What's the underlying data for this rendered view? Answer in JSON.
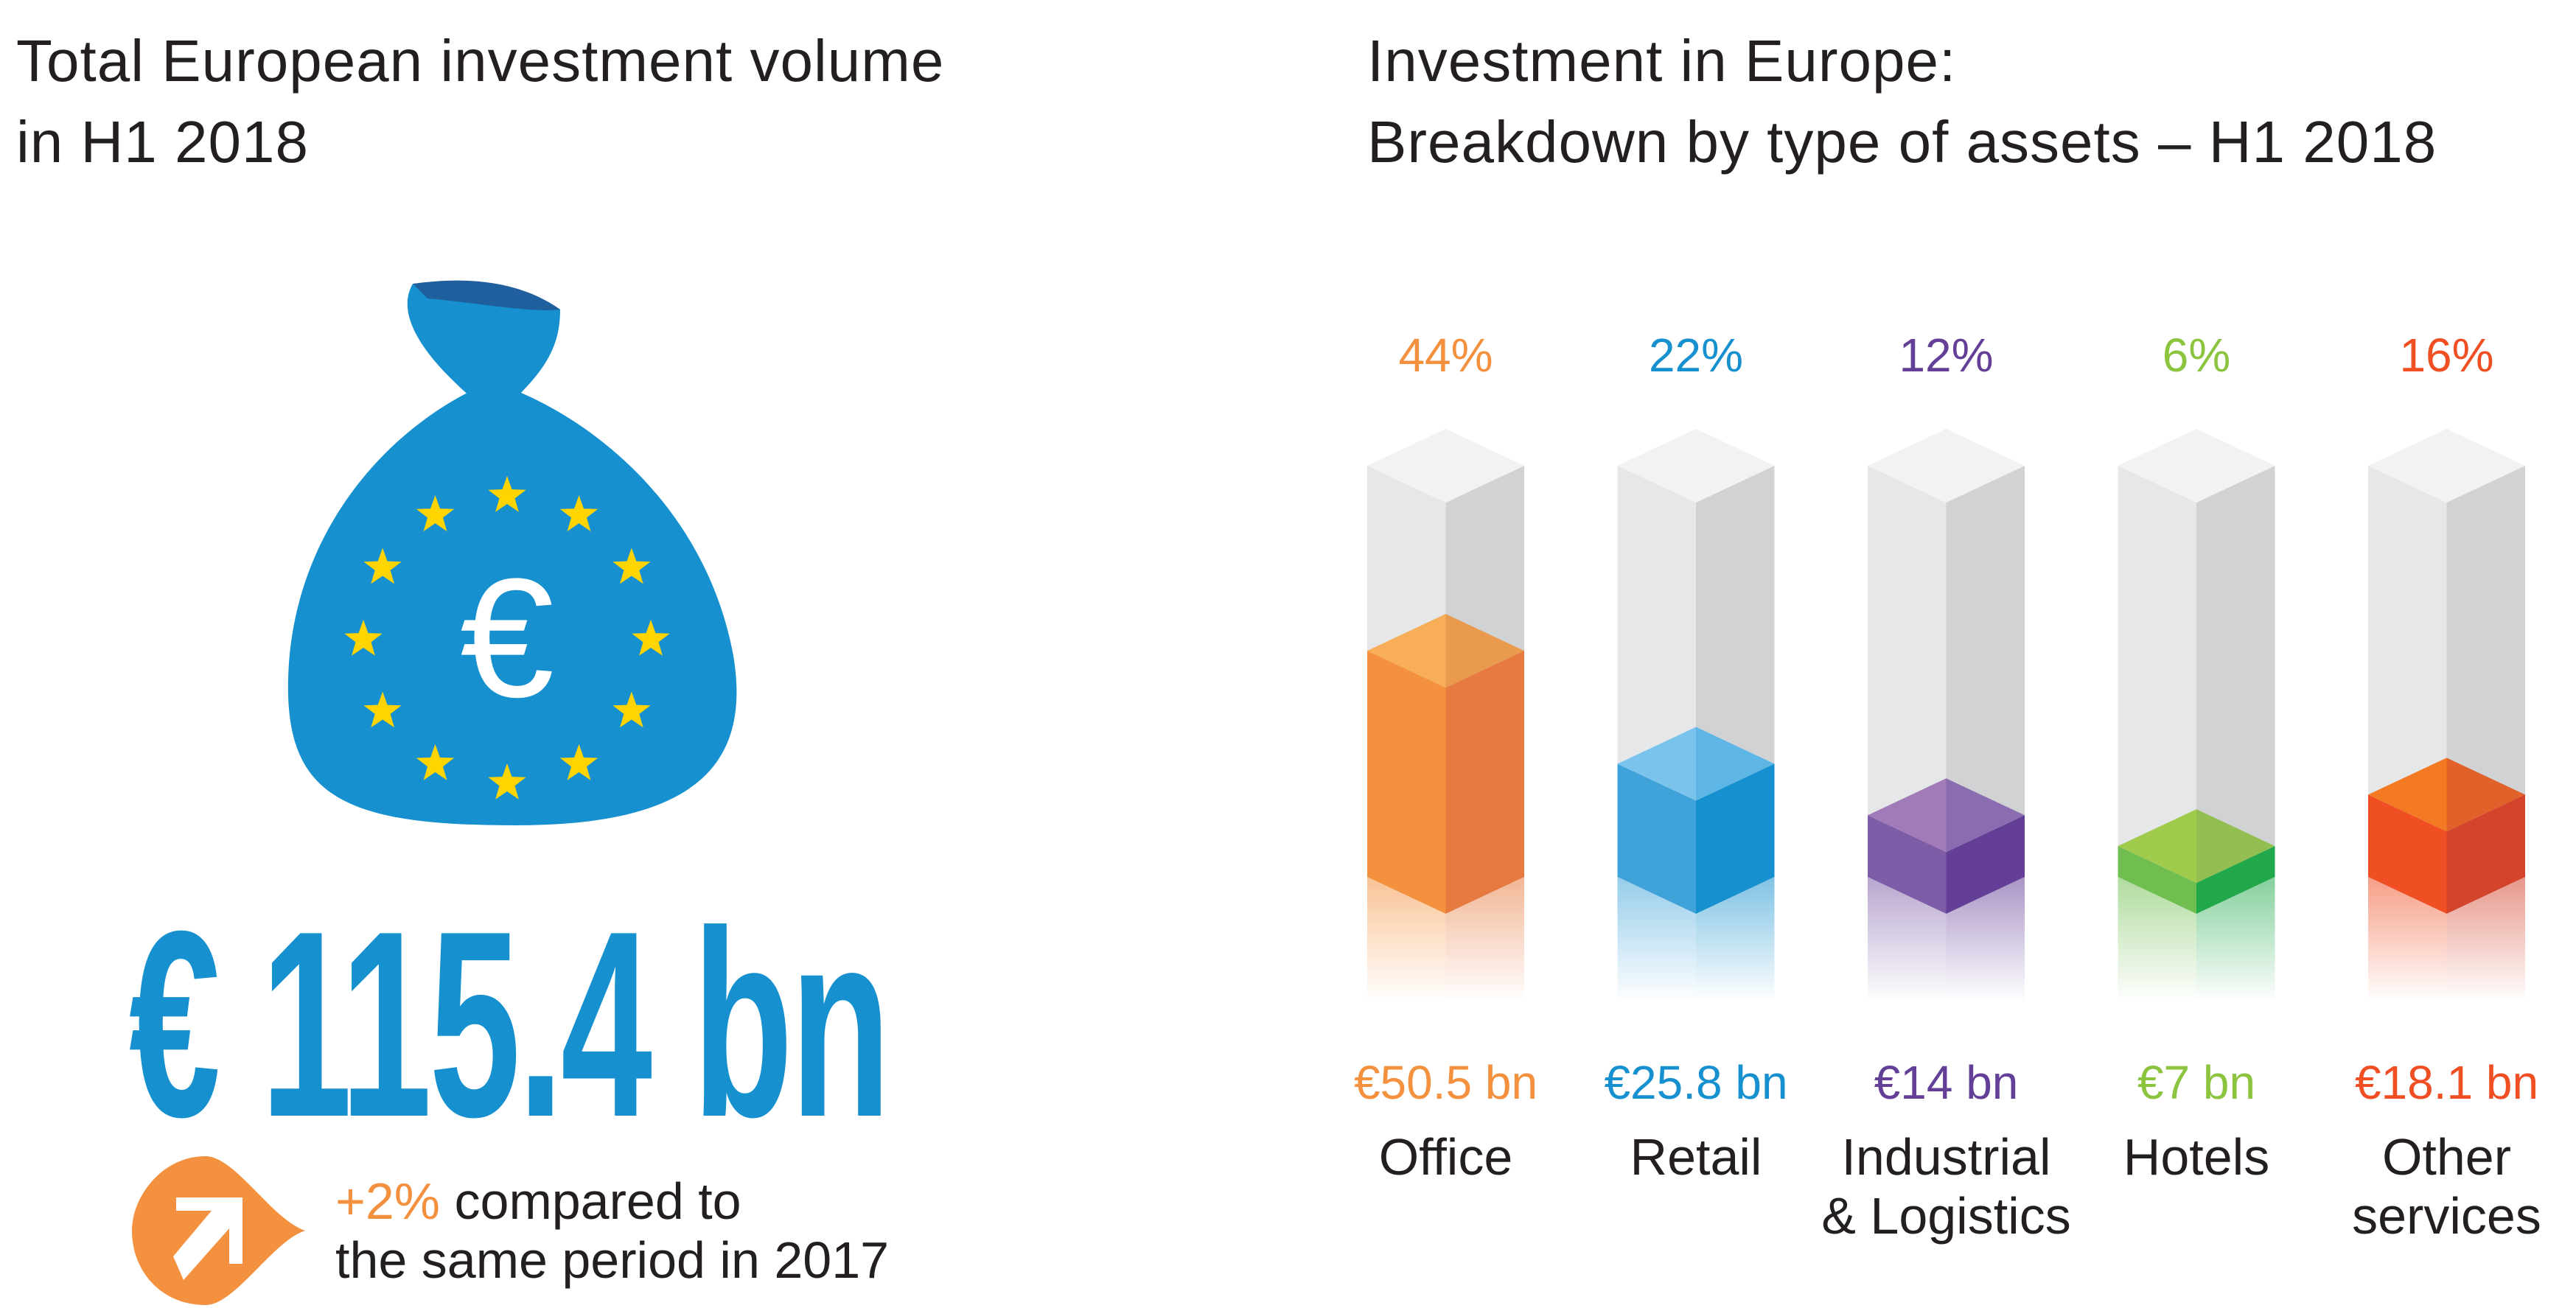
{
  "left": {
    "title": "Total European investment volume\nin H1 2018",
    "total": "€ 115.4 bn",
    "change_pct": "+2%",
    "change_text_1": " compared to",
    "change_text_2": "the same period in 2017",
    "icons": [
      "money-bag-icon",
      "euro-icon",
      "star-icon",
      "arrow-up-right-icon"
    ],
    "colors": {
      "bag": "#1690CE",
      "bag_tie": "#1F5F9E",
      "stars": "#FFD400",
      "badge": "#F4913F"
    }
  },
  "chart_data": {
    "type": "bar",
    "title": "Investment in Europe:\nBreakdown by type of assets – H1 2018",
    "categories": [
      "Office",
      "Retail",
      "Industrial\n& Logistics",
      "Hotels",
      "Other\nservices"
    ],
    "percent_labels": [
      "44%",
      "22%",
      "12%",
      "6%",
      "16%"
    ],
    "values_pct": [
      44,
      22,
      12,
      6,
      16
    ],
    "value_labels": [
      "€50.5 bn",
      "€25.8 bn",
      "€14 bn",
      "€7 bn",
      "€18.1 bn"
    ],
    "values_bn": [
      50.5,
      25.8,
      14,
      7,
      18.1
    ],
    "colors": [
      "#F4913F",
      "#1690CE",
      "#633F97",
      "#8CC43F",
      "#F04E23"
    ],
    "style": "3d-isometric-columns"
  }
}
